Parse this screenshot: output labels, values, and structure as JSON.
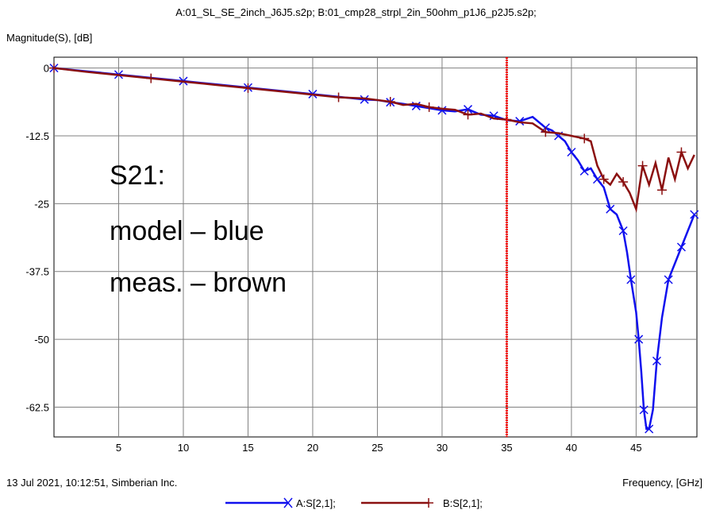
{
  "header": {
    "title": "A:01_SL_SE_2inch_J6J5.s2p; B:01_cmp28_strpl_2in_50ohm_p1J6_p2J5.s2p;"
  },
  "footer": {
    "timestamp": "13 Jul 2021, 10:12:51, Simberian Inc."
  },
  "annotation": {
    "lines": [
      "S21:",
      "model – blue",
      "meas. – brown"
    ]
  },
  "chart_data": {
    "type": "line",
    "title": "A:01_SL_SE_2inch_J6J5.s2p; B:01_cmp28_strpl_2in_50ohm_p1J6_p2J5.s2p;",
    "xlabel": "Frequency, [GHz]",
    "ylabel": "Magnitude(S), [dB]",
    "xlim": [
      0,
      49.7
    ],
    "ylim": [
      -68,
      2
    ],
    "grid": true,
    "x_ticks": [
      5,
      10,
      15,
      20,
      25,
      30,
      35,
      40,
      45
    ],
    "x_tick_labels": [
      "5",
      "10",
      "15",
      "20",
      "25",
      "30",
      "35",
      "40",
      "45"
    ],
    "y_ticks": [
      0,
      -12.5,
      -25,
      -37.5,
      -50,
      -62.5
    ],
    "y_tick_labels": [
      "0",
      "-12.5",
      "-25",
      "-37.5",
      "-50",
      "-62.5"
    ],
    "marker_line_x": 35,
    "legend_position": "bottom",
    "colors": {
      "A": "#1010ee",
      "B": "#8b1010",
      "marker": "#ff0000",
      "grid": "#808080"
    },
    "series": [
      {
        "name": "A:S[2,1];",
        "marker": "x",
        "x": [
          0,
          2.5,
          5,
          7.5,
          10,
          12.5,
          15,
          17.5,
          20,
          22,
          24,
          25,
          26,
          27,
          28,
          29,
          30,
          31,
          32,
          33,
          34,
          35,
          36,
          37,
          38,
          38.5,
          39,
          39.5,
          40,
          40.5,
          41,
          41.5,
          42,
          42.5,
          43,
          43.5,
          44,
          44.3,
          44.6,
          45,
          45.2,
          45.4,
          45.6,
          45.8,
          46,
          46.3,
          46.6,
          47,
          47.5,
          48,
          48.5,
          49,
          49.5
        ],
        "y": [
          0,
          -0.6,
          -1.2,
          -1.8,
          -2.4,
          -3.0,
          -3.6,
          -4.2,
          -4.8,
          -5.3,
          -5.8,
          -5.9,
          -6.3,
          -6.6,
          -7.0,
          -7.4,
          -7.8,
          -8.0,
          -7.6,
          -8.6,
          -8.8,
          -9.6,
          -9.8,
          -9.0,
          -11.0,
          -11.5,
          -12.5,
          -13.5,
          -15.5,
          -17.0,
          -19.0,
          -18.5,
          -20.5,
          -22.0,
          -26.0,
          -27.0,
          -30.0,
          -34.0,
          -39.0,
          -45.0,
          -50.0,
          -56.0,
          -63.0,
          -68.0,
          -68.0,
          -63.0,
          -54.0,
          -46.0,
          -39.0,
          -36.0,
          -33.0,
          -30.0,
          -27.0
        ]
      },
      {
        "name": "B:S[2,1];",
        "marker": "+",
        "x": [
          0,
          2.5,
          5,
          7.5,
          10,
          12.5,
          15,
          17.5,
          20,
          22,
          24,
          25,
          26,
          27,
          28,
          29,
          30,
          31,
          32,
          33,
          34,
          35,
          36,
          37,
          38,
          39,
          40,
          41,
          41.5,
          42,
          42.5,
          43,
          43.5,
          44,
          44.5,
          45,
          45.5,
          46,
          46.5,
          47,
          47.5,
          48,
          48.5,
          49,
          49.5
        ],
        "y": [
          0,
          -0.7,
          -1.3,
          -1.9,
          -2.5,
          -3.1,
          -3.7,
          -4.3,
          -4.9,
          -5.4,
          -5.6,
          -5.9,
          -6.2,
          -6.8,
          -6.6,
          -7.2,
          -7.5,
          -7.7,
          -8.6,
          -8.4,
          -9.3,
          -9.5,
          -10.0,
          -10.2,
          -11.8,
          -12.0,
          -12.5,
          -13.0,
          -13.5,
          -18.0,
          -20.5,
          -21.5,
          -19.5,
          -21.0,
          -23.0,
          -26.0,
          -18.0,
          -21.5,
          -17.5,
          -22.5,
          -16.5,
          -20.5,
          -15.5,
          -18.5,
          -16.0
        ]
      }
    ]
  }
}
